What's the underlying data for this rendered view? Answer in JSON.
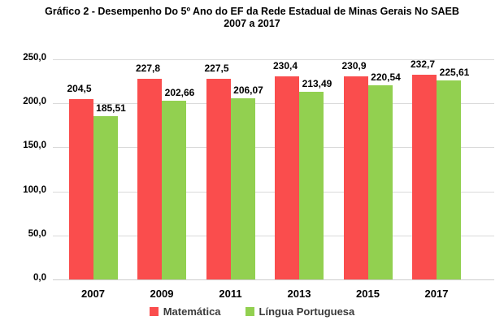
{
  "title": {
    "line1": "Gráfico 2 - Desempenho Do 5º Ano do EF da Rede Estadual de Minas Gerais No SAEB",
    "line2": "2007 a 2017"
  },
  "chart_data": {
    "type": "bar",
    "title": "Gráfico 2 - Desempenho Do 5º Ano do EF da Rede Estadual de Minas Gerais No SAEB 2007 a 2017",
    "categories": [
      "2007",
      "2009",
      "2011",
      "2013",
      "2015",
      "2017"
    ],
    "series": [
      {
        "name": "Matemática",
        "color": "#fa4d4d",
        "values": [
          204.5,
          227.8,
          227.5,
          230.4,
          230.9,
          232.7
        ],
        "value_labels": [
          "204,5",
          "227,8",
          "227,5",
          "230,4",
          "230,9",
          "232,7"
        ]
      },
      {
        "name": "Língua Portuguesa",
        "color": "#92d050",
        "values": [
          185.51,
          202.66,
          206.07,
          213.49,
          220.54,
          225.61
        ],
        "value_labels": [
          "185,51",
          "202,66",
          "206,07",
          "213,49",
          "220,54",
          "225,61"
        ]
      }
    ],
    "xlabel": "",
    "ylabel": "",
    "ylim": [
      0,
      250
    ],
    "ytick_step": 50,
    "ytick_labels": [
      "0,0",
      "50,0",
      "100,0",
      "150,0",
      "200,0",
      "250,0"
    ],
    "grid": true,
    "gridline_color": "#dadada",
    "baseline_color": "#cccccc",
    "legend_position": "bottom"
  }
}
